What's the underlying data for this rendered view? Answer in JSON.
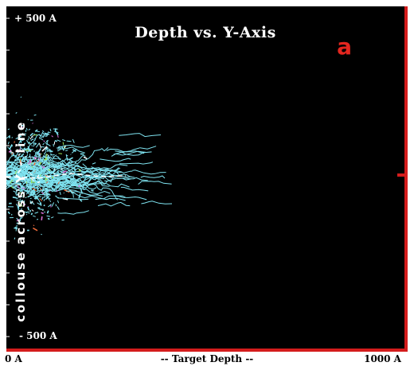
{
  "plot": {
    "title": "Depth vs. Y-Axis",
    "panel_label": "a",
    "y_top_label": "+ 500 A",
    "y_bottom_label": "- 500 A",
    "y_axis_label": "collouse across Y - line",
    "x_left_label": "0 A",
    "x_center_label": "-- Target Depth --",
    "x_right_label": "1000 A"
  },
  "colors": {
    "background": "#000000",
    "frame": "#d41c1c",
    "panel_label": "#e3261f",
    "track_primary": "#7fe3f0",
    "track_secondary": [
      "#e96a3a",
      "#d86fd6",
      "#ffffff",
      "#9be35a"
    ]
  }
}
